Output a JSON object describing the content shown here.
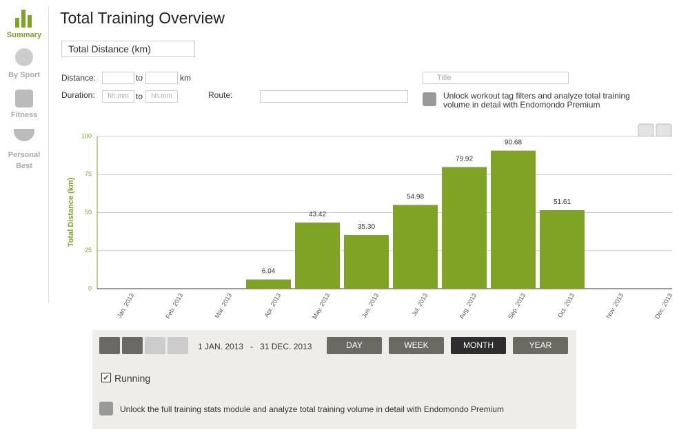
{
  "sidebar": {
    "items": [
      "Summary",
      "By Sport",
      "Fitness",
      "Personal",
      "Best"
    ]
  },
  "header": {
    "title": "Total Training Overview"
  },
  "filters": {
    "metric": "Total Distance (km)",
    "distance_label": "Distance:",
    "to": "to",
    "km": "km",
    "duration_label": "Duration:",
    "duration_placeholder": "hh:mm",
    "route_label": "Route:",
    "title_placeholder": "Title",
    "premium_note": "Unlock workout tag filters and analyze total training volume in detail with Endomondo Premium"
  },
  "chart_data": {
    "type": "bar",
    "y_label": "Total Distance (km)",
    "categories": [
      "Jan. 2013",
      "Feb. 2013",
      "Mar. 2013",
      "Apr. 2013",
      "May. 2013",
      "Jun. 2013",
      "Jul. 2013",
      "Aug. 2013",
      "Sep. 2013",
      "Oct. 2013",
      "Nov. 2013",
      "Dec. 2013"
    ],
    "values": [
      null,
      null,
      null,
      6.04,
      43.42,
      35.3,
      54.98,
      79.92,
      90.68,
      51.61,
      null,
      null
    ],
    "value_labels": [
      null,
      null,
      null,
      "6.04",
      "43.42",
      "35.30",
      "54.98",
      "79.92",
      "90.68",
      "51.61",
      null,
      null
    ],
    "color": "#7ea325",
    "ylim": [
      0,
      100
    ],
    "yticks": [
      0,
      25,
      50,
      75,
      100
    ],
    "grid": true
  },
  "controls": {
    "date_range": "1 JAN. 2013   -   31 DEC. 2013",
    "periods": [
      "DAY",
      "WEEK",
      "MONTH",
      "YEAR"
    ],
    "sport": "Running",
    "premium_note": "Unlock the full training stats module and analyze total training volume in detail with Endomondo Premium"
  }
}
